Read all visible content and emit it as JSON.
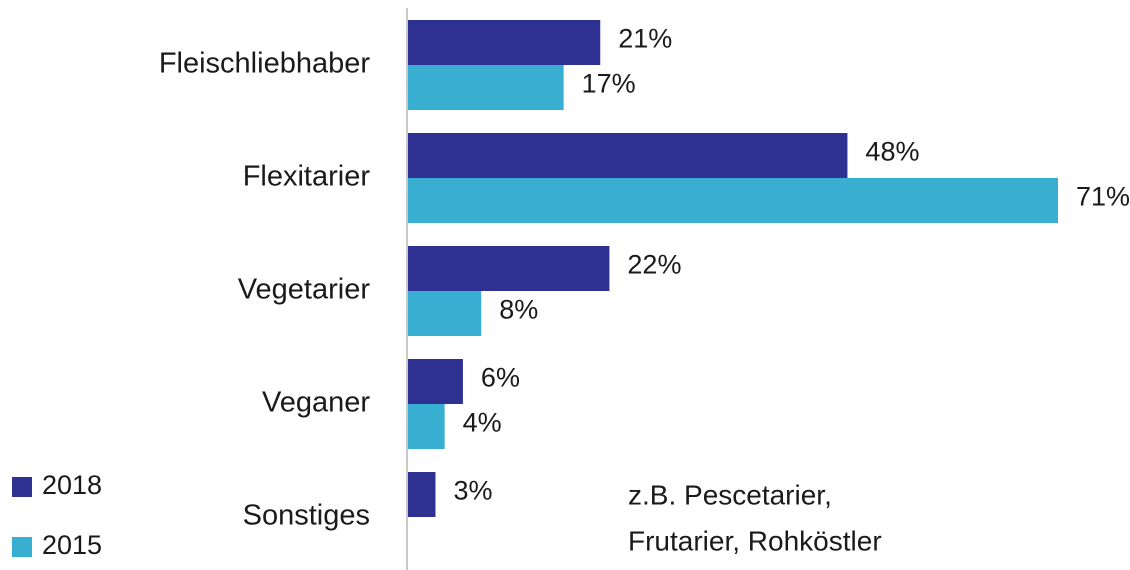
{
  "chart_data": {
    "type": "hbar",
    "categories": [
      "Fleischliebhaber",
      "Flexitarier",
      "Vegetarier",
      "Veganer",
      "Sonstiges"
    ],
    "series": [
      {
        "name": "2018",
        "color": "#2e3192",
        "values": [
          21,
          48,
          22,
          6,
          3
        ],
        "value_labels": [
          "21%",
          "48%",
          "22%",
          "6%",
          "3%"
        ]
      },
      {
        "name": "2015",
        "color": "#38afd0",
        "values": [
          17,
          71,
          8,
          4,
          null
        ],
        "value_labels": [
          "17%",
          "71%",
          "8%",
          "4%",
          null
        ]
      }
    ],
    "annotation": [
      "z.B. Pescetarier,",
      "Frutarier, Rohköstler"
    ]
  }
}
